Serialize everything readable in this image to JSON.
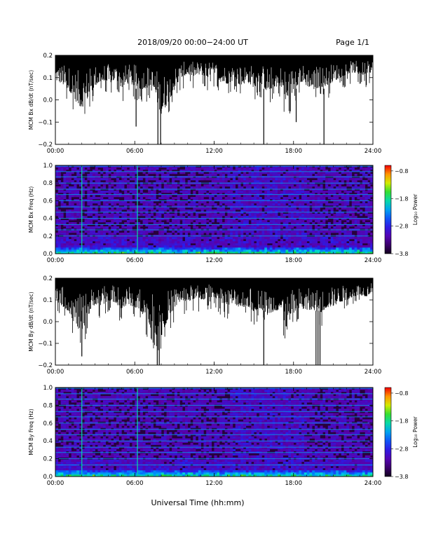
{
  "header": {
    "title": "2018/09/20   00:00−24:00 UT",
    "page": "Page 1/1"
  },
  "footer": {
    "xlabel": "Universal Time (hh:mm)"
  },
  "chart_data": [
    {
      "type": "line",
      "ylabel": "MCM Bx dB/dt (nT/sec)",
      "xlim": [
        0,
        24
      ],
      "ylim": [
        -0.2,
        0.2
      ],
      "yticks": [
        "0.2",
        "0.1",
        "0.0",
        "−0.1",
        "−0.2"
      ],
      "ytick_values": [
        0.2,
        0.1,
        0.0,
        -0.1,
        -0.2
      ],
      "xticks": [
        "00:00",
        "06:00",
        "12:00",
        "18:00",
        "24:00"
      ],
      "x": [
        0,
        0.5,
        1,
        1.5,
        2,
        2.5,
        3,
        3.5,
        4,
        4.5,
        5,
        5.5,
        6,
        6.5,
        7,
        7.5,
        8,
        8.5,
        9,
        9.5,
        10,
        10.5,
        11,
        11.5,
        12,
        12.5,
        13,
        13.5,
        14,
        14.5,
        15,
        15.5,
        16,
        16.5,
        17,
        17.5,
        18,
        18.5,
        19,
        19.5,
        20,
        20.5,
        21,
        21.5,
        22,
        22.5,
        23,
        23.5,
        24
      ],
      "upper": [
        0.2,
        0.2,
        0.2,
        0.2,
        0.2,
        0.2,
        0.2,
        0.2,
        0.2,
        0.2,
        0.2,
        0.2,
        0.2,
        0.2,
        0.2,
        0.2,
        0.2,
        0.2,
        0.2,
        0.2,
        0.2,
        0.2,
        0.2,
        0.2,
        0.2,
        0.2,
        0.2,
        0.2,
        0.2,
        0.2,
        0.2,
        0.2,
        0.2,
        0.2,
        0.2,
        0.2,
        0.2,
        0.2,
        0.2,
        0.2,
        0.2,
        0.2,
        0.2,
        0.2,
        0.2,
        0.2,
        0.2,
        0.2,
        0.2
      ],
      "lower": [
        0.07,
        0.05,
        0.02,
        -0.04,
        -0.08,
        -0.02,
        0.04,
        0.06,
        0.05,
        0.07,
        0.03,
        0.05,
        0.04,
        0.02,
        0.03,
        0.0,
        -0.12,
        -0.05,
        0.02,
        0.08,
        0.1,
        0.09,
        0.1,
        0.08,
        0.1,
        0.06,
        0.05,
        0.07,
        0.04,
        0.06,
        0.03,
        0.05,
        0.01,
        0.03,
        0.04,
        -0.06,
        0.02,
        0.06,
        0.04,
        0.02,
        0.03,
        0.04,
        0.06,
        0.08,
        0.1,
        0.11,
        0.1,
        0.09,
        0.12
      ],
      "spikes": [
        {
          "x": 6.1,
          "y": -0.12
        },
        {
          "x": 7.75,
          "y": -0.2
        },
        {
          "x": 7.95,
          "y": -0.2
        },
        {
          "x": 15.75,
          "y": -0.2
        },
        {
          "x": 18.2,
          "y": -0.1
        },
        {
          "x": 20.3,
          "y": -0.2
        }
      ]
    },
    {
      "type": "heatmap",
      "ylabel": "MCM Bx Freq (Hz)",
      "xlim": [
        0,
        24
      ],
      "ylim": [
        0,
        1.0
      ],
      "yticks": [
        "1.0",
        "0.8",
        "0.6",
        "0.4",
        "0.2",
        "0.0"
      ],
      "ytick_values": [
        1.0,
        0.8,
        0.6,
        0.4,
        0.2,
        0.0
      ],
      "xticks": [
        "00:00",
        "06:00",
        "12:00",
        "18:00",
        "24:00"
      ],
      "colorbar": {
        "label": "Log₁₀ Power",
        "ticks": [
          "−0.8",
          "−1.8",
          "−2.8",
          "−3.8"
        ],
        "tick_values": [
          -0.8,
          -1.8,
          -2.8,
          -3.8
        ],
        "range": [
          -3.8,
          -0.6
        ]
      },
      "vertical_lines_hours": [
        2.0,
        6.2
      ],
      "harmonic_lines_hz": [
        0.2,
        0.27,
        0.33,
        0.4,
        0.47,
        0.53,
        0.6,
        0.67,
        0.73,
        0.8,
        0.87,
        0.93,
        0.99
      ]
    },
    {
      "type": "line",
      "ylabel": "MCM By dB/dt (nT/sec)",
      "xlim": [
        0,
        24
      ],
      "ylim": [
        -0.2,
        0.2
      ],
      "yticks": [
        "0.2",
        "0.1",
        "0.0",
        "−0.1",
        "−0.2"
      ],
      "ytick_values": [
        0.2,
        0.1,
        0.0,
        -0.1,
        -0.2
      ],
      "xticks": [
        "00:00",
        "06:00",
        "12:00",
        "18:00",
        "24:00"
      ],
      "x": [
        0,
        0.5,
        1,
        1.5,
        2,
        2.5,
        3,
        3.5,
        4,
        4.5,
        5,
        5.5,
        6,
        6.5,
        7,
        7.5,
        8,
        8.5,
        9,
        9.5,
        10,
        10.5,
        11,
        11.5,
        12,
        12.5,
        13,
        13.5,
        14,
        14.5,
        15,
        15.5,
        16,
        16.5,
        17,
        17.5,
        18,
        18.5,
        19,
        19.5,
        20,
        20.5,
        21,
        21.5,
        22,
        22.5,
        23,
        23.5,
        24
      ],
      "upper": [
        0.2,
        0.2,
        0.2,
        0.2,
        0.2,
        0.2,
        0.2,
        0.2,
        0.2,
        0.2,
        0.2,
        0.2,
        0.2,
        0.2,
        0.2,
        0.2,
        0.2,
        0.2,
        0.2,
        0.2,
        0.2,
        0.2,
        0.2,
        0.2,
        0.2,
        0.2,
        0.2,
        0.2,
        0.2,
        0.2,
        0.2,
        0.2,
        0.2,
        0.2,
        0.2,
        0.2,
        0.2,
        0.2,
        0.2,
        0.2,
        0.2,
        0.2,
        0.2,
        0.2,
        0.2,
        0.2,
        0.2,
        0.2,
        0.2
      ],
      "lower": [
        0.08,
        0.05,
        0.02,
        -0.05,
        -0.1,
        0.0,
        0.06,
        0.05,
        0.08,
        0.07,
        0.03,
        0.06,
        0.04,
        0.02,
        -0.05,
        -0.1,
        -0.12,
        -0.02,
        0.04,
        0.08,
        0.07,
        0.09,
        0.08,
        0.09,
        0.1,
        0.07,
        0.05,
        0.06,
        0.04,
        0.05,
        0.02,
        0.04,
        0.0,
        0.02,
        0.03,
        -0.08,
        0.01,
        0.04,
        0.02,
        0.03,
        0.01,
        0.04,
        0.05,
        0.07,
        0.08,
        0.1,
        0.11,
        0.1,
        0.13
      ],
      "spikes": [
        {
          "x": 2.0,
          "y": -0.16
        },
        {
          "x": 7.7,
          "y": -0.2
        },
        {
          "x": 7.85,
          "y": -0.2
        },
        {
          "x": 15.75,
          "y": -0.2
        },
        {
          "x": 19.7,
          "y": -0.2
        },
        {
          "x": 19.85,
          "y": -0.2
        },
        {
          "x": 20.0,
          "y": -0.2
        }
      ]
    },
    {
      "type": "heatmap",
      "ylabel": "MCM By Freq (Hz)",
      "xlim": [
        0,
        24
      ],
      "ylim": [
        0,
        1.0
      ],
      "yticks": [
        "1.0",
        "0.8",
        "0.6",
        "0.4",
        "0.2",
        "0.0"
      ],
      "ytick_values": [
        1.0,
        0.8,
        0.6,
        0.4,
        0.2,
        0.0
      ],
      "xticks": [
        "00:00",
        "06:00",
        "12:00",
        "18:00",
        "24:00"
      ],
      "colorbar": {
        "label": "Log₁₀ Power",
        "ticks": [
          "−0.8",
          "−1.8",
          "−2.8",
          "−3.8"
        ],
        "tick_values": [
          -0.8,
          -1.8,
          -2.8,
          -3.8
        ],
        "range": [
          -3.8,
          -0.6
        ]
      },
      "vertical_lines_hours": [
        2.0,
        6.2
      ],
      "harmonic_lines_hz": [
        0.13,
        0.2,
        0.27,
        0.33,
        0.4,
        0.47,
        0.53,
        0.6,
        0.67,
        0.73,
        0.8,
        0.87,
        0.93,
        0.99
      ]
    }
  ]
}
